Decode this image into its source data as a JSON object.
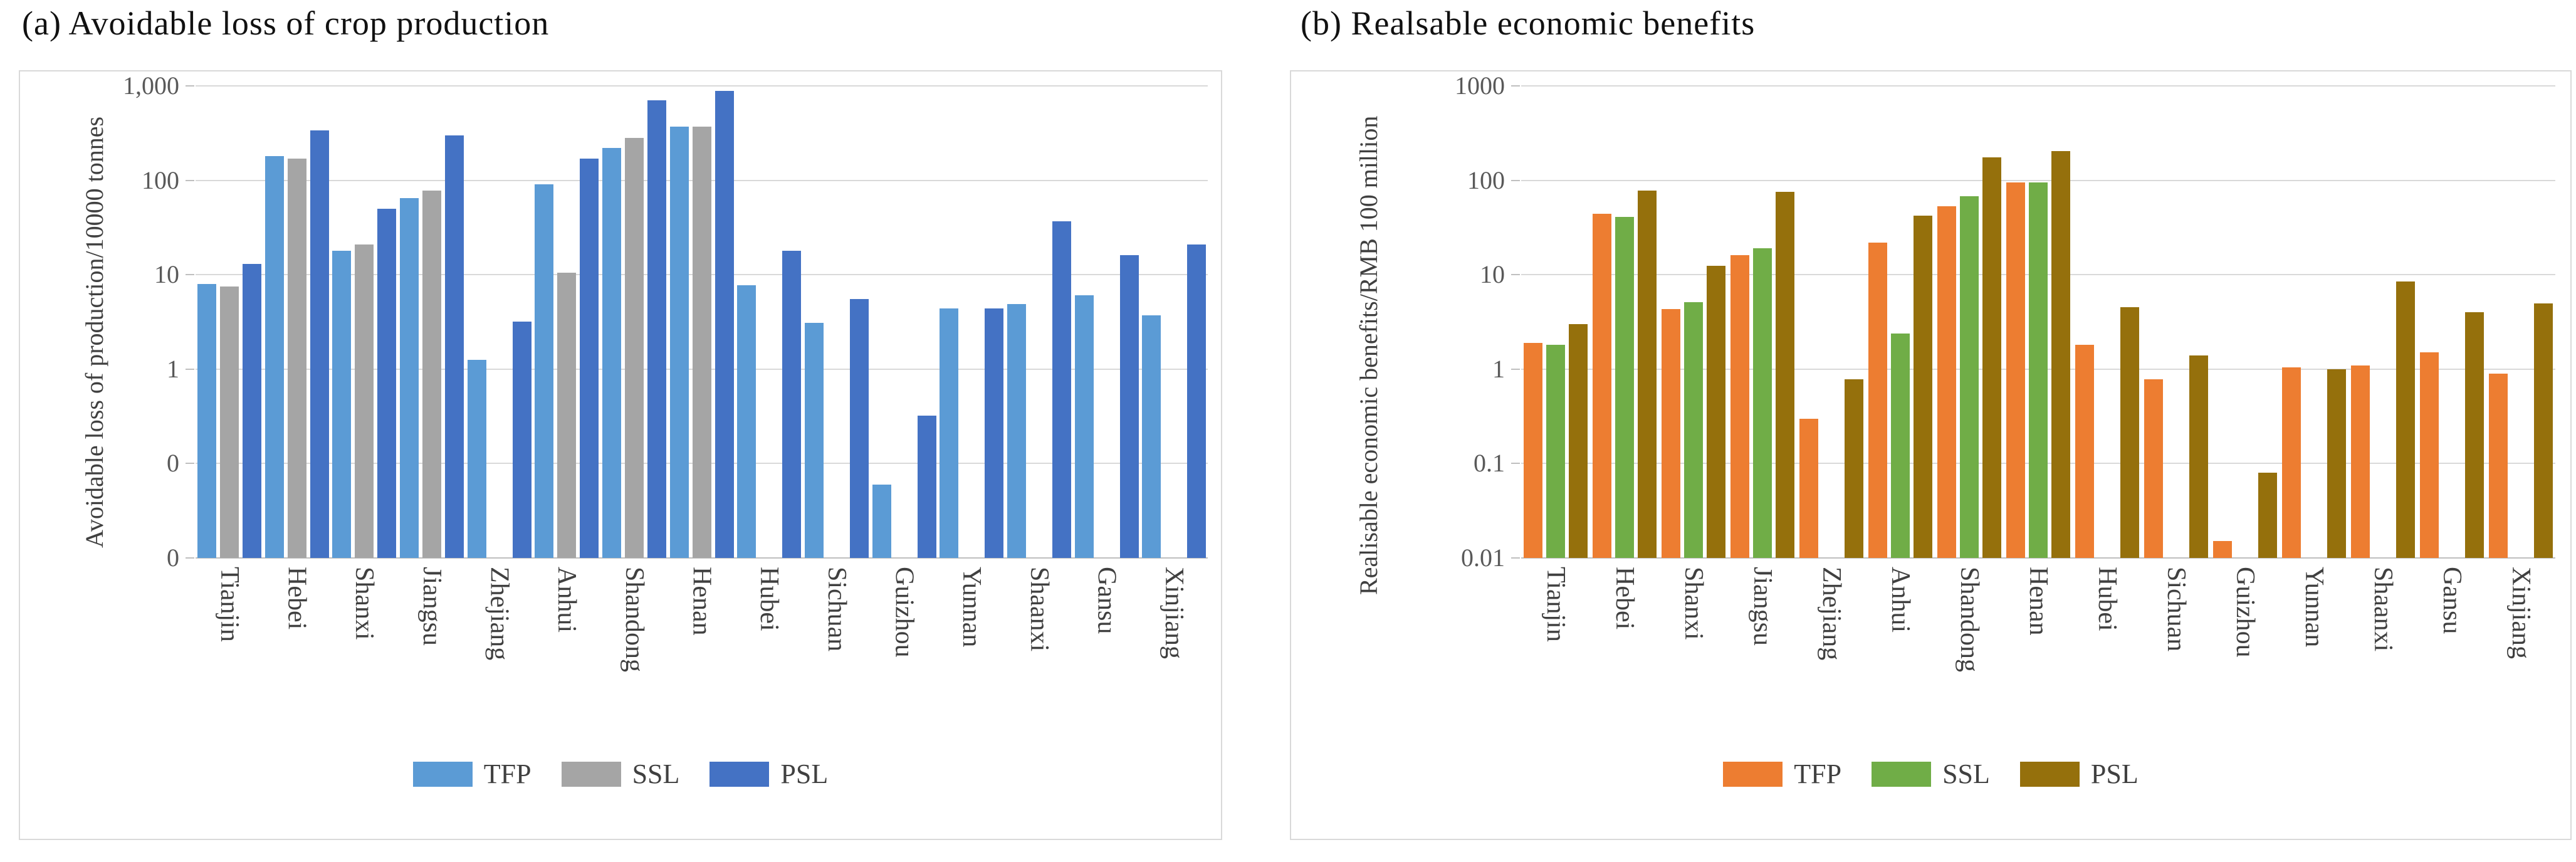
{
  "colors": {
    "panel_border": "#d9d9d9",
    "gridline": "#d9d9d9",
    "axis_line": "#bfbfbf",
    "tick_text": "#595959",
    "label_text": "#404040",
    "title_text": "#111111",
    "background": "#ffffff"
  },
  "chart_data": [
    {
      "type": "bar",
      "title": "(a) Avoidable loss of crop production",
      "ylabel": "Avoidable loss of production/10000 tonnes",
      "xlabel": "",
      "yscale": "log",
      "ylim": [
        0.01,
        1000
      ],
      "grid": true,
      "legend_position": "bottom",
      "yticks": [
        {
          "value": 1000,
          "label": "1,000"
        },
        {
          "value": 100,
          "label": "100"
        },
        {
          "value": 10,
          "label": "10"
        },
        {
          "value": 1,
          "label": "1"
        },
        {
          "value": 0.1,
          "label": "0"
        },
        {
          "value": 0.01,
          "label": "0"
        }
      ],
      "categories": [
        "Tianjin",
        "Hebei",
        "Shanxi",
        "Jiangsu",
        "Zhejiang",
        "Anhui",
        "Shandong",
        "Henan",
        "Hubei",
        "Sichuan",
        "Guizhou",
        "Yunnan",
        "Shaanxi",
        "Gansu",
        "Xinjiang"
      ],
      "series": [
        {
          "name": "TFP",
          "color": "#5b9bd5",
          "values": [
            8,
            180,
            18,
            65,
            1.25,
            90,
            220,
            370,
            7.7,
            3.1,
            0.06,
            4.4,
            4.9,
            6.1,
            3.7
          ]
        },
        {
          "name": "SSL",
          "color": "#a5a5a5",
          "values": [
            7.5,
            170,
            21,
            78,
            null,
            10.5,
            280,
            370,
            null,
            null,
            null,
            null,
            null,
            null,
            null
          ]
        },
        {
          "name": "PSL",
          "color": "#4472c4",
          "values": [
            13,
            340,
            50,
            300,
            3.2,
            170,
            700,
            880,
            18,
            5.5,
            0.32,
            4.4,
            37,
            16,
            21
          ]
        }
      ]
    },
    {
      "type": "bar",
      "title": "(b) Realsable economic benefits",
      "ylabel": "Realisable economic benefits/RMB 100 million",
      "xlabel": "",
      "yscale": "log",
      "ylim": [
        0.01,
        1000
      ],
      "grid": true,
      "legend_position": "bottom",
      "yticks": [
        {
          "value": 1000,
          "label": "1000"
        },
        {
          "value": 100,
          "label": "100"
        },
        {
          "value": 10,
          "label": "10"
        },
        {
          "value": 1,
          "label": "1"
        },
        {
          "value": 0.1,
          "label": "0.1"
        },
        {
          "value": 0.01,
          "label": "0.01"
        }
      ],
      "categories": [
        "Tianjin",
        "Hebei",
        "Shanxi",
        "Jiangsu",
        "Zhejiang",
        "Anhui",
        "Shandong",
        "Henan",
        "Hubei",
        "Sichuan",
        "Guizhou",
        "Yunnan",
        "Shaanxi",
        "Gansu",
        "Xinjiang"
      ],
      "series": [
        {
          "name": "TFP",
          "color": "#ed7d31",
          "values": [
            1.9,
            44,
            4.3,
            16,
            0.3,
            22,
            53,
            95,
            1.8,
            0.78,
            0.015,
            1.05,
            1.1,
            1.5,
            0.9
          ]
        },
        {
          "name": "SSL",
          "color": "#70ad47",
          "values": [
            1.8,
            41,
            5.1,
            19,
            null,
            2.4,
            68,
            95,
            null,
            null,
            null,
            null,
            null,
            null,
            null
          ]
        },
        {
          "name": "PSL",
          "color": "#95700c",
          "values": [
            3.0,
            78,
            12.5,
            75,
            0.78,
            42,
            175,
            205,
            4.5,
            1.4,
            0.08,
            1.0,
            8.5,
            4.0,
            5.0
          ]
        }
      ]
    }
  ]
}
